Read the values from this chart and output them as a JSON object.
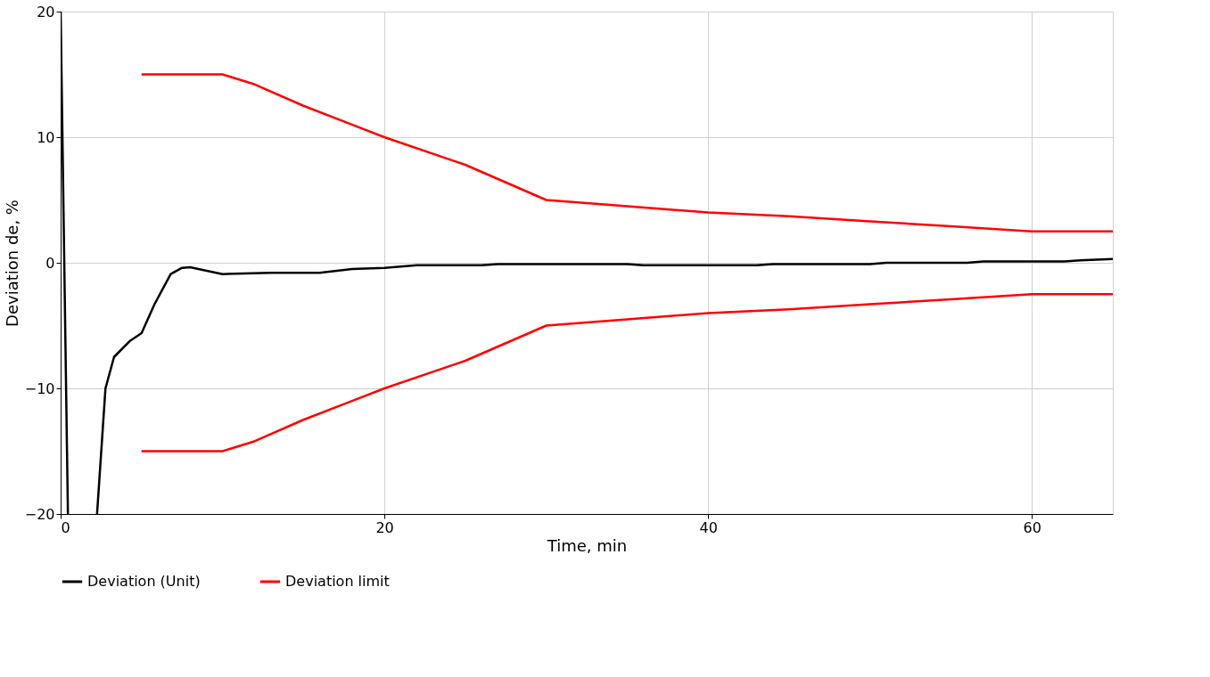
{
  "chart_data": {
    "type": "line",
    "xlabel": "Time, min",
    "ylabel": "Deviation de, %",
    "xlim": [
      0,
      65
    ],
    "ylim": [
      -20,
      20
    ],
    "xticks": [
      0,
      20,
      40,
      60
    ],
    "yticks": [
      -20,
      -10,
      0,
      10,
      20
    ],
    "grid": true,
    "legend": "bottom",
    "line_style": "solid",
    "marker": "none",
    "series": [
      {
        "name": "Deviation (Unit)",
        "color": "#000000",
        "x": [
          0,
          0.45,
          1.3,
          2.25,
          2.77,
          3.3,
          4.3,
          5,
          5.8,
          6.8,
          7.5,
          8,
          8.9,
          10,
          13,
          16,
          18,
          20,
          22,
          26,
          27,
          35,
          36,
          43,
          44,
          50,
          51,
          56,
          57,
          62,
          63,
          65
        ],
        "values": [
          20,
          -20,
          null,
          -20,
          -10,
          -7.5,
          -6.2,
          -5.6,
          -3.3,
          -0.9,
          -0.4,
          -0.35,
          -0.6,
          -0.9,
          -0.8,
          -0.8,
          -0.5,
          -0.4,
          -0.2,
          -0.2,
          -0.1,
          -0.1,
          -0.2,
          -0.2,
          -0.1,
          -0.1,
          0,
          0,
          0.1,
          0.1,
          0.2,
          0.3
        ]
      },
      {
        "name": "Deviation limit",
        "color": "#ff0000",
        "x": [
          5,
          10,
          12,
          15,
          18,
          20,
          25,
          30,
          35,
          40,
          45,
          50,
          55,
          60,
          65
        ],
        "values": [
          15,
          15,
          14.2,
          12.5,
          11,
          10,
          7.8,
          5,
          4.5,
          4,
          3.7,
          3.3,
          2.9,
          2.5,
          2.5
        ]
      },
      {
        "color": "#ff0000",
        "x": [
          5,
          10,
          12,
          15,
          18,
          20,
          25,
          30,
          35,
          40,
          45,
          50,
          55,
          60,
          65
        ],
        "values": [
          -15,
          -15,
          -14.2,
          -12.5,
          -11,
          -10,
          -7.8,
          -5,
          -4.5,
          -4,
          -3.7,
          -3.3,
          -2.9,
          -2.5,
          -2.5
        ]
      }
    ]
  }
}
